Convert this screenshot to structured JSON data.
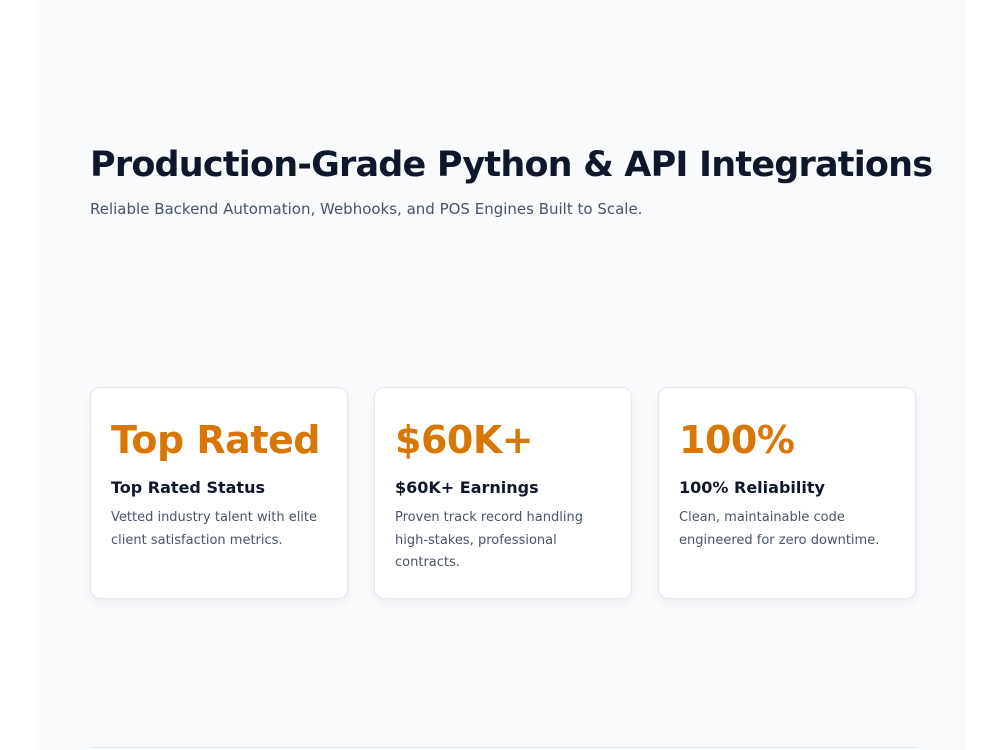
{
  "hero": {
    "title": "Production-Grade Python & API Integrations",
    "subtitle": "Reliable Backend Automation, Webhooks, and POS Engines Built to Scale."
  },
  "stats": [
    {
      "metric": "Top Rated",
      "heading": "Top Rated Status",
      "description": "Vetted industry talent with elite client satisfaction metrics."
    },
    {
      "metric": "$60K+",
      "heading": "$60K+ Earnings",
      "description": "Proven track record handling high-stakes, professional contracts."
    },
    {
      "metric": "100%",
      "heading": "100% Reliability",
      "description": "Clean, maintainable code engineered for zero downtime."
    }
  ],
  "colors": {
    "accent": "#d97706",
    "heading": "#0f172a",
    "body_text": "#475569",
    "page_background": "#f8fafc",
    "card_border": "#e2e8f0"
  }
}
